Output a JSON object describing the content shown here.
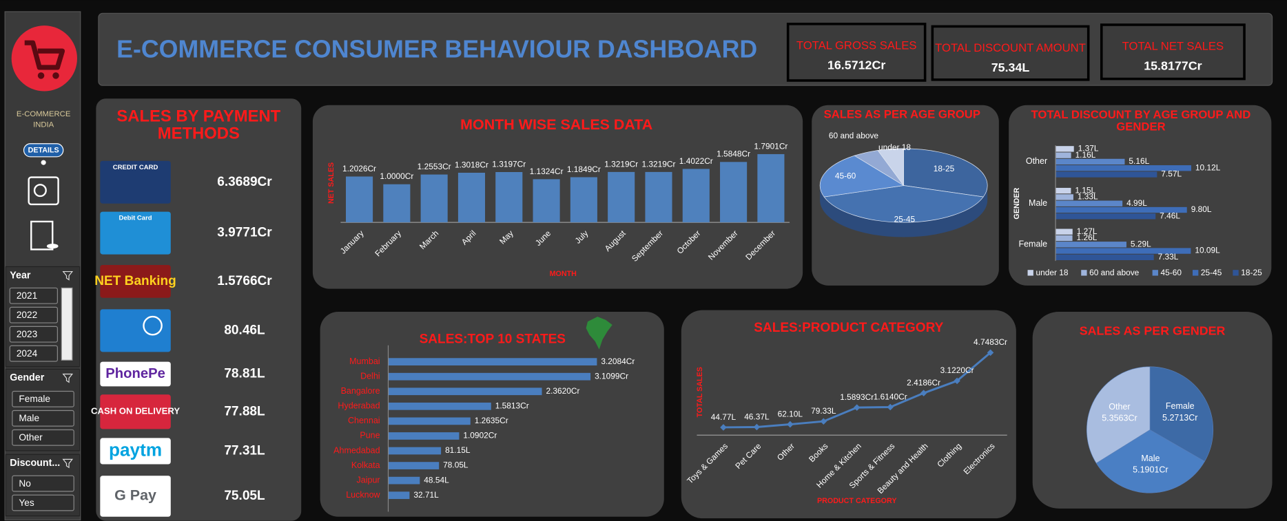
{
  "header": {
    "title": "E-COMMERCE CONSUMER BEHAVIOUR DASHBOARD"
  },
  "kpis": [
    {
      "label": "TOTAL GROSS SALES",
      "value": "16.5712Cr"
    },
    {
      "label": "TOTAL DISCOUNT AMOUNT",
      "value": "75.34L"
    },
    {
      "label": "TOTAL NET SALES",
      "value": "15.8177Cr"
    }
  ],
  "sidebar": {
    "brand": [
      "E-COMMERCE",
      "INDIA"
    ],
    "details": "DETAILS",
    "slicers": [
      {
        "title": "Year",
        "items": [
          "2021",
          "2022",
          "2023",
          "2024"
        ]
      },
      {
        "title": "Gender",
        "items": [
          "Female",
          "Male",
          "Other"
        ]
      },
      {
        "title": "Discount...",
        "items": [
          "No",
          "Yes"
        ]
      }
    ]
  },
  "payment_methods": {
    "title": "SALES BY PAYMENT METHODS",
    "rows": [
      {
        "logo": "CREDIT CARD",
        "value": "6.3689Cr"
      },
      {
        "logo": "Debit Card",
        "value": "3.9771Cr"
      },
      {
        "logo": "NET Banking",
        "value": "1.5766Cr"
      },
      {
        "value": "80.46L"
      },
      {
        "logo": "PhonePe",
        "value": "78.81L"
      },
      {
        "logo": "CASH ON DELIVERY",
        "value": "77.88L"
      },
      {
        "logo": "paytm",
        "value": "77.31L"
      },
      {
        "logo": "G Pay",
        "value": "75.05L"
      }
    ]
  },
  "chart_data": [
    {
      "type": "bar",
      "title": "MONTH WISE SALES DATA",
      "x_label": "MONTH",
      "y_label": "NET SALES",
      "categories": [
        "January",
        "February",
        "March",
        "April",
        "May",
        "June",
        "July",
        "August",
        "September",
        "October",
        "November",
        "December"
      ],
      "values": [
        1.2026,
        1.0,
        1.2553,
        1.3018,
        1.3197,
        1.1324,
        1.1849,
        1.3219,
        1.3219,
        1.4022,
        1.5848,
        1.7901
      ],
      "value_labels": [
        "1.2026Cr",
        "1.0000Cr",
        "1.2553Cr",
        "1.3018Cr",
        "1.3197Cr",
        "1.1324Cr",
        "1.1849Cr",
        "1.3219Cr",
        "1.3219Cr",
        "1.4022Cr",
        "1.5848Cr",
        "1.7901Cr"
      ],
      "ylim": [
        0,
        2
      ],
      "color": "#4f81bd"
    },
    {
      "type": "pie3d",
      "title": "SALES AS PER AGE GROUP",
      "categories": [
        "18-25",
        "25-45",
        "45-60",
        "60 and above",
        "under 18"
      ],
      "values": [
        30,
        40,
        20,
        5,
        5
      ],
      "colors": [
        "#3d659e",
        "#4572b0",
        "#5a8ad0",
        "#93a9d4",
        "#c9d4ea"
      ]
    },
    {
      "type": "hbar",
      "title": "TOTAL DISCOUNT BY AGE GROUP AND GENDER",
      "y_label": "GENDER",
      "categories": [
        "Other",
        "Male",
        "Female"
      ],
      "series": [
        {
          "name": "under 18",
          "color": "#c9d3ea",
          "values": [
            1.37,
            1.15,
            1.27
          ],
          "value_labels": [
            "1.37L",
            "1.15L",
            "1.27L"
          ]
        },
        {
          "name": "60 and above",
          "color": "#9fb4dc",
          "values": [
            1.16,
            1.33,
            1.26
          ],
          "value_labels": [
            "1.16L",
            "1.33L",
            "1.26L"
          ]
        },
        {
          "name": "45-60",
          "color": "#5b86c9",
          "values": [
            5.16,
            4.99,
            5.29
          ],
          "value_labels": [
            "5.16L",
            "4.99L",
            "5.29L"
          ]
        },
        {
          "name": "25-45",
          "color": "#3e6db8",
          "values": [
            10.12,
            9.8,
            10.09
          ],
          "value_labels": [
            "10.12L",
            "9.80L",
            "10.09L"
          ]
        },
        {
          "name": "18-25",
          "color": "#2f5597",
          "values": [
            7.57,
            7.46,
            7.33
          ],
          "value_labels": [
            "7.57L",
            "7.46L",
            "7.33L"
          ]
        }
      ],
      "xlim": [
        0,
        12
      ],
      "legend": "bottom"
    },
    {
      "type": "hbar",
      "title": "SALES:TOP 10 STATES",
      "categories": [
        "Mumbai",
        "Delhi",
        "Bangalore",
        "Hyderabad",
        "Chennai",
        "Pune",
        "Ahmedabad",
        "Kolkata",
        "Jaipur",
        "Lucknow"
      ],
      "values": [
        3.2084,
        3.1099,
        2.362,
        1.5813,
        1.2635,
        1.0902,
        0.8115,
        0.7805,
        0.4854,
        0.3271
      ],
      "value_labels": [
        "3.2084Cr",
        "3.1099Cr",
        "2.3620Cr",
        "1.5813Cr",
        "1.2635Cr",
        "1.0902Cr",
        "81.15L",
        "78.05L",
        "48.54L",
        "32.71L"
      ],
      "xlim": [
        0,
        4
      ],
      "color": "#4a7ebf"
    },
    {
      "type": "line",
      "title": "SALES:PRODUCT CATEGORY",
      "x_label": "PRODUCT CATEGORY",
      "y_label": "TOTAL SALES",
      "categories": [
        "Toys & Games",
        "Pet Care",
        "Other",
        "Books",
        "Home & Kitchen",
        "Sports & Fitness",
        "Beauty and Health",
        "Clothing",
        "Electronics"
      ],
      "values": [
        0.4477,
        0.4637,
        0.621,
        0.7933,
        1.5893,
        1.614,
        2.4186,
        3.122,
        4.7483
      ],
      "value_labels": [
        "44.77L",
        "46.37L",
        "62.10L",
        "79.33L",
        "1.5893Cr",
        "1.6140Cr",
        "2.4186Cr",
        "3.1220Cr",
        "4.7483Cr"
      ],
      "ylim": [
        0,
        5
      ],
      "color": "#4a7ebf"
    },
    {
      "type": "pie",
      "title": "SALES AS PER GENDER",
      "categories": [
        "Female",
        "Male",
        "Other"
      ],
      "values": [
        5.2713,
        5.1901,
        5.3563
      ],
      "value_labels": [
        "5.2713Cr",
        "5.1901Cr",
        "5.3563Cr"
      ],
      "colors": [
        "#3d6aa6",
        "#4a7fc4",
        "#a9bde0"
      ]
    }
  ]
}
